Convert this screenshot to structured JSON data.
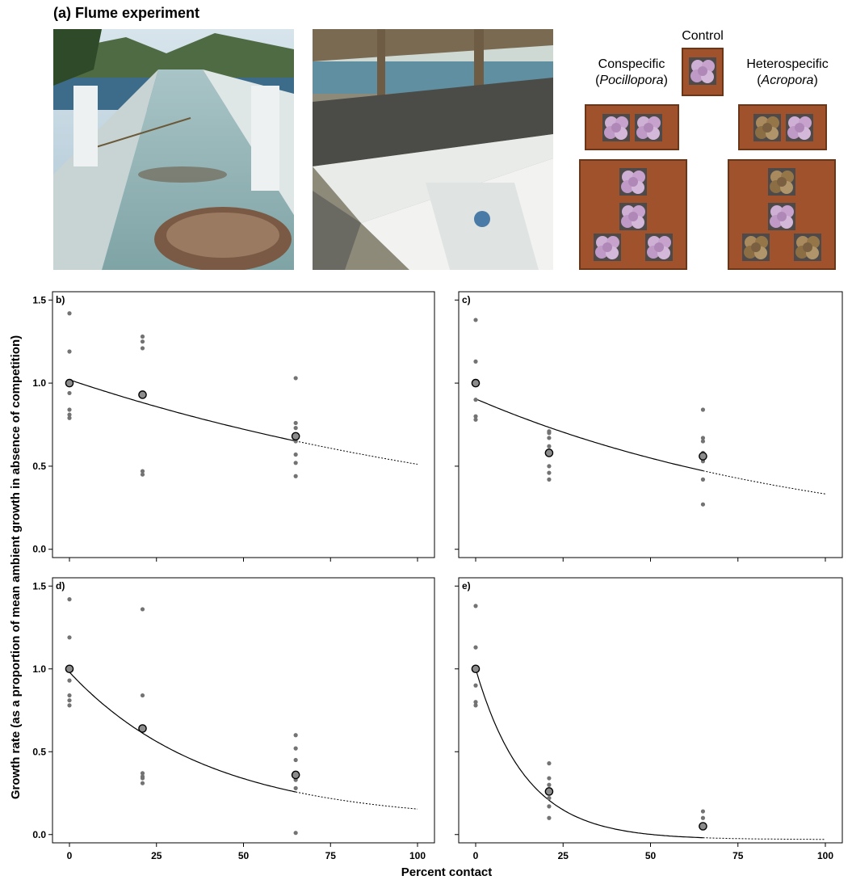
{
  "header": {
    "title": "(a) Flume experiment"
  },
  "schematic": {
    "control_label": "Control",
    "conspecific_label": "Conspecific",
    "conspecific_genus": "Pocillopora",
    "heterospecific_label": "Heterospecific",
    "heterospecific_genus": "Acropora"
  },
  "colors": {
    "tile": "#a0522d",
    "coral_pink": "#c9a6cf",
    "coral_brown": "#9c7f52",
    "raw_point": "#737373",
    "mean_point": "#8c8c8c",
    "fit_line": "#000000"
  },
  "axes": {
    "xlabel": "Percent contact",
    "ylabel": "Growth rate (as a proportion of mean ambient growth in absence of competition)"
  },
  "chart_data": [
    {
      "type": "scatter",
      "panel": "b)",
      "xlim": [
        0,
        100
      ],
      "ylim": [
        -0.05,
        1.55
      ],
      "x_ticks": [
        "0",
        "25",
        "50",
        "75",
        "100"
      ],
      "y_ticks": [
        "0.0",
        "0.5",
        "1.0",
        "1.5"
      ],
      "raw_points": [
        [
          0,
          1.42
        ],
        [
          0,
          1.19
        ],
        [
          0,
          1.01
        ],
        [
          0,
          0.94
        ],
        [
          0,
          0.84
        ],
        [
          0,
          0.81
        ],
        [
          0,
          0.79
        ],
        [
          21,
          1.28
        ],
        [
          21,
          1.25
        ],
        [
          21,
          1.21
        ],
        [
          21,
          0.47
        ],
        [
          21,
          0.45
        ],
        [
          65,
          1.03
        ],
        [
          65,
          0.76
        ],
        [
          65,
          0.73
        ],
        [
          65,
          0.65
        ],
        [
          65,
          0.57
        ],
        [
          65,
          0.52
        ],
        [
          65,
          0.44
        ]
      ],
      "means": [
        [
          0,
          1.0
        ],
        [
          21,
          0.93
        ],
        [
          65,
          0.68
        ]
      ],
      "fit": {
        "form": "exp",
        "a": 1.02,
        "k": 0.0069,
        "solid_to": 65
      },
      "grid": false
    },
    {
      "type": "scatter",
      "panel": "c)",
      "xlim": [
        0,
        100
      ],
      "ylim": [
        -0.05,
        1.55
      ],
      "x_ticks": [
        "0",
        "25",
        "50",
        "75",
        "100"
      ],
      "y_ticks": [
        "0.0",
        "0.5",
        "1.0",
        "1.5"
      ],
      "raw_points": [
        [
          0,
          1.38
        ],
        [
          0,
          1.13
        ],
        [
          0,
          1.0
        ],
        [
          0,
          0.9
        ],
        [
          0,
          0.8
        ],
        [
          0,
          0.78
        ],
        [
          21,
          0.71
        ],
        [
          21,
          0.7
        ],
        [
          21,
          0.67
        ],
        [
          21,
          0.62
        ],
        [
          21,
          0.5
        ],
        [
          21,
          0.46
        ],
        [
          21,
          0.42
        ],
        [
          65,
          0.84
        ],
        [
          65,
          0.67
        ],
        [
          65,
          0.65
        ],
        [
          65,
          0.58
        ],
        [
          65,
          0.53
        ],
        [
          65,
          0.42
        ],
        [
          65,
          0.27
        ]
      ],
      "means": [
        [
          0,
          1.0
        ],
        [
          21,
          0.58
        ],
        [
          65,
          0.56
        ]
      ],
      "fit": {
        "form": "exp",
        "a": 0.905,
        "k": 0.01,
        "solid_to": 65
      },
      "grid": false
    },
    {
      "type": "scatter",
      "panel": "d)",
      "xlim": [
        0,
        100
      ],
      "ylim": [
        -0.05,
        1.55
      ],
      "x_ticks": [
        "0",
        "25",
        "50",
        "75",
        "100"
      ],
      "y_ticks": [
        "0.0",
        "0.5",
        "1.0",
        "1.5"
      ],
      "raw_points": [
        [
          0,
          1.42
        ],
        [
          0,
          1.19
        ],
        [
          0,
          1.0
        ],
        [
          0,
          0.93
        ],
        [
          0,
          0.84
        ],
        [
          0,
          0.81
        ],
        [
          0,
          0.78
        ],
        [
          21,
          1.36
        ],
        [
          21,
          0.84
        ],
        [
          21,
          0.37
        ],
        [
          21,
          0.35
        ],
        [
          21,
          0.34
        ],
        [
          21,
          0.31
        ],
        [
          65,
          0.6
        ],
        [
          65,
          0.52
        ],
        [
          65,
          0.45
        ],
        [
          65,
          0.37
        ],
        [
          65,
          0.33
        ],
        [
          65,
          0.28
        ],
        [
          65,
          0.01
        ]
      ],
      "means": [
        [
          0,
          1.0
        ],
        [
          21,
          0.64
        ],
        [
          65,
          0.36
        ]
      ],
      "fit": {
        "form": "exp_asym",
        "c": 0.08,
        "a": 0.9,
        "k": 0.025,
        "solid_to": 65
      },
      "grid": false
    },
    {
      "type": "scatter",
      "panel": "e)",
      "xlim": [
        0,
        100
      ],
      "ylim": [
        -0.05,
        1.55
      ],
      "x_ticks": [
        "0",
        "25",
        "50",
        "75",
        "100"
      ],
      "y_ticks": [
        "0.0",
        "0.5",
        "1.0",
        "1.5"
      ],
      "raw_points": [
        [
          0,
          1.38
        ],
        [
          0,
          1.13
        ],
        [
          0,
          1.0
        ],
        [
          0,
          0.9
        ],
        [
          0,
          0.8
        ],
        [
          0,
          0.78
        ],
        [
          21,
          0.43
        ],
        [
          21,
          0.34
        ],
        [
          21,
          0.3
        ],
        [
          21,
          0.25
        ],
        [
          21,
          0.22
        ],
        [
          21,
          0.17
        ],
        [
          21,
          0.1
        ],
        [
          65,
          0.14
        ],
        [
          65,
          0.1
        ],
        [
          65,
          0.06
        ],
        [
          65,
          0.04
        ]
      ],
      "means": [
        [
          0,
          1.0
        ],
        [
          21,
          0.26
        ],
        [
          65,
          0.05
        ]
      ],
      "fit": {
        "form": "exp_asym",
        "c": -0.03,
        "a": 1.03,
        "k": 0.07,
        "solid_to": 65
      },
      "grid": false
    }
  ]
}
